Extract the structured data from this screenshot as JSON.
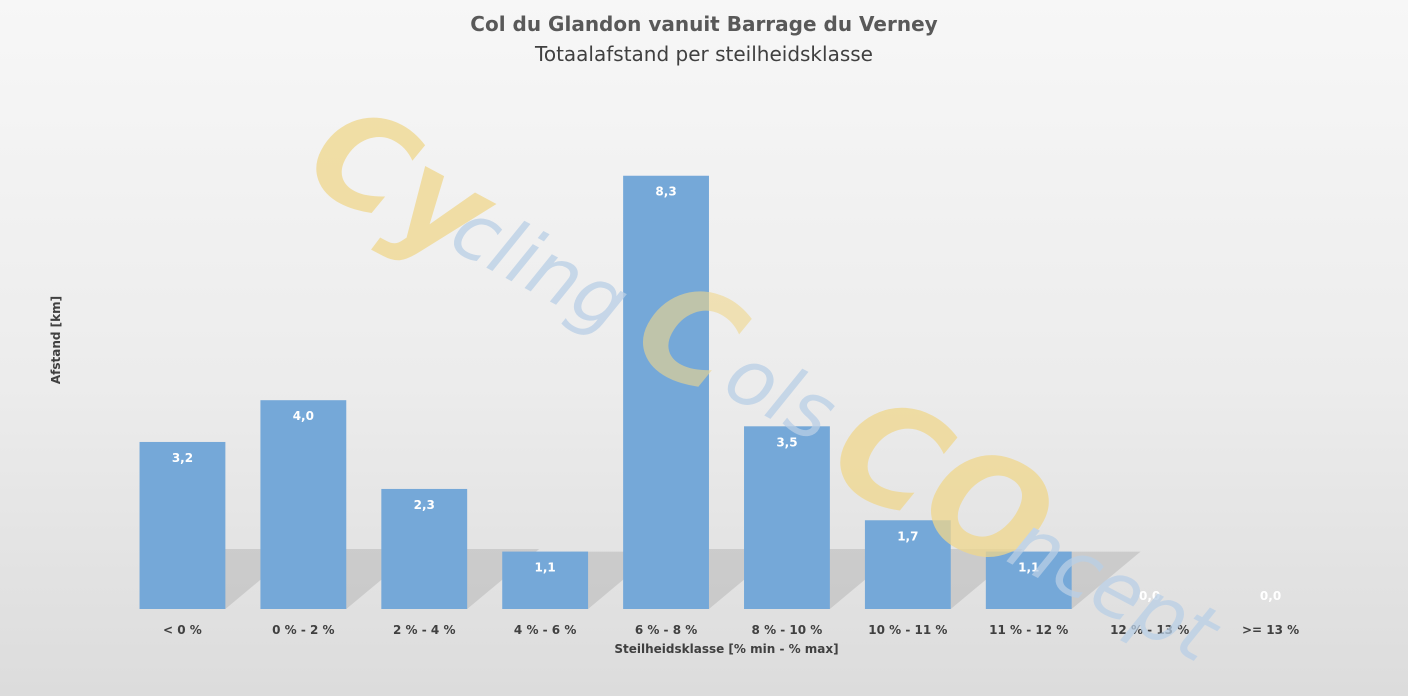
{
  "chart_data": {
    "type": "bar",
    "title": "Col du Glandon vanuit Barrage du Verney",
    "subtitle": "Totaalafstand per steilheidsklasse",
    "xlabel": "Steilheidsklasse [% min - % max]",
    "ylabel": "Afstand [km]",
    "categories": [
      "< 0 %",
      "0 % - 2 %",
      "2 % - 4 %",
      "4 % - 6 %",
      "6 % - 8 %",
      "8 % - 10 %",
      "10 % - 11 %",
      "11 % - 12 %",
      "12 % - 13 %",
      ">= 13 %"
    ],
    "values": [
      3.2,
      4.0,
      2.3,
      1.1,
      8.3,
      3.5,
      1.7,
      1.1,
      0.0,
      0.0
    ],
    "data_labels": [
      "3,2",
      "4,0",
      "2,3",
      "1,1",
      "8,3",
      "3,5",
      "1,7",
      "1,1",
      "0,0",
      "0,0"
    ],
    "ylim": [
      0,
      10
    ],
    "grid": false,
    "legend": "none",
    "bar_color": "#75a8d8",
    "label_color": "#ffffff"
  },
  "watermark": {
    "text_parts": [
      "Cy",
      "cling",
      "C",
      "ols",
      "CO",
      "ncept"
    ],
    "yellow": "#f0d78c",
    "blue": "#b9cfe6"
  }
}
